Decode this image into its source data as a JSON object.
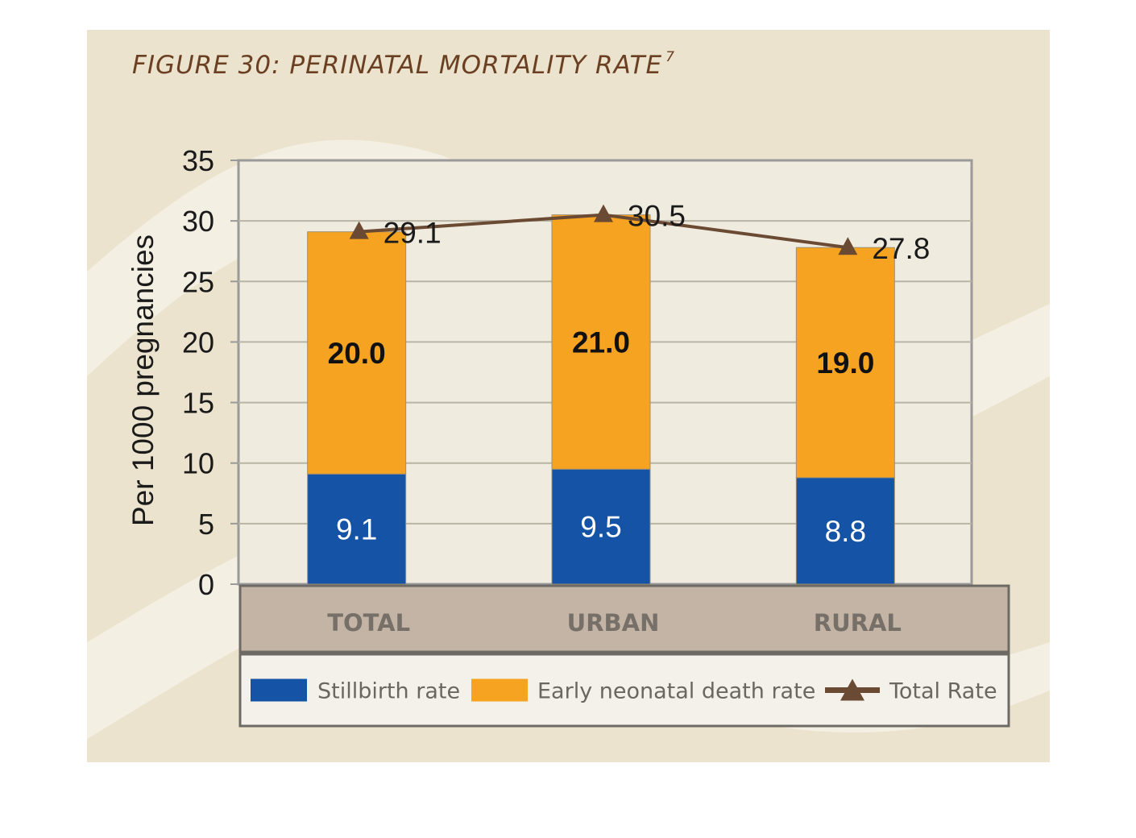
{
  "figure": {
    "title": "FIGURE 30: PERINATAL MORTALITY RATE",
    "footnote_ref": "7"
  },
  "colors": {
    "panel_background": "#ebe3cd",
    "panel_swirl": "#f4efe3",
    "plot_background": "#efebdf",
    "category_band": "#c3b4a5",
    "stillbirth": "#1453a5",
    "early_neonatal": "#f5a320",
    "total_line": "#6b4a33",
    "title_text": "#6b3f22"
  },
  "chart_data": {
    "type": "bar",
    "stacked": true,
    "categories": [
      "TOTAL",
      "URBAN",
      "RURAL"
    ],
    "series": [
      {
        "name": "Stillbirth rate",
        "type": "bar",
        "values": [
          9.1,
          9.5,
          8.8
        ],
        "labels": [
          "9.1",
          "9.5",
          "8.8"
        ],
        "color": "#1453a5"
      },
      {
        "name": "Early neonatal death rate",
        "type": "bar",
        "values": [
          20.0,
          21.0,
          19.0
        ],
        "labels": [
          "20.0",
          "21.0",
          "19.0"
        ],
        "color": "#f5a320"
      },
      {
        "name": "Total Rate",
        "type": "line",
        "marker": "triangle",
        "values": [
          29.1,
          30.5,
          27.8
        ],
        "labels": [
          "29.1",
          "30.5",
          "27.8"
        ],
        "color": "#6b4a33"
      }
    ],
    "title": "",
    "xlabel": "",
    "ylabel": "Per 1000 pregnancies",
    "ylim": [
      0,
      35
    ],
    "yticks": [
      0,
      5,
      10,
      15,
      20,
      25,
      30,
      35
    ],
    "grid": true,
    "legend_position": "bottom"
  }
}
